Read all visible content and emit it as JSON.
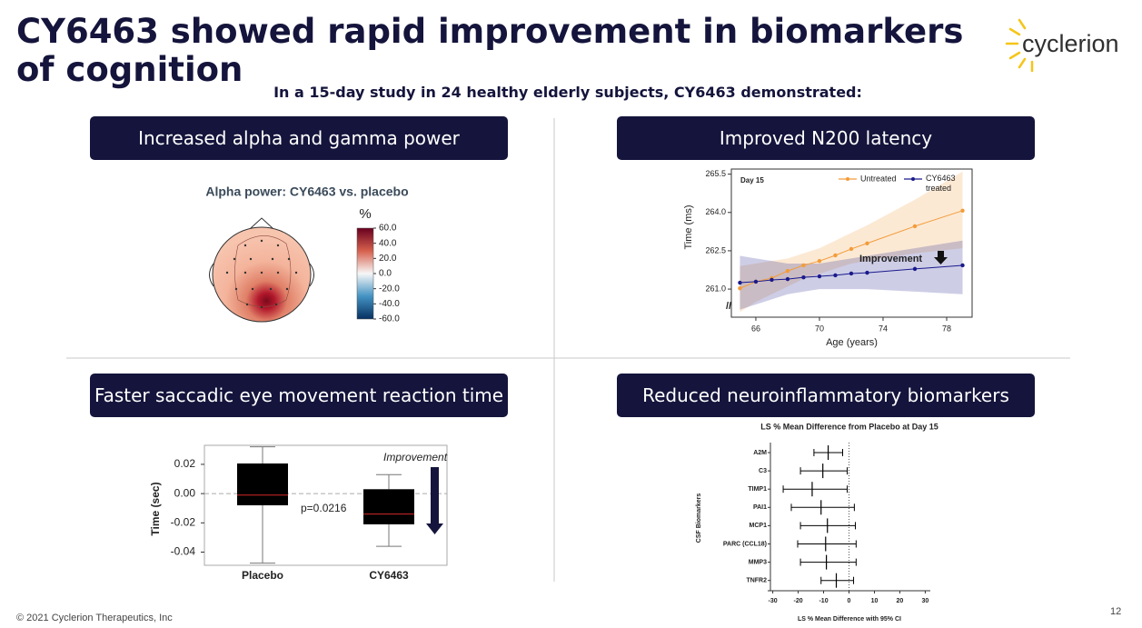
{
  "title": "CY6463 showed rapid improvement in biomarkers of cognition",
  "logo": "cyclerion",
  "subtitle": "In a 15-day study in 24 healthy elderly subjects, CY6463 demonstrated:",
  "panels": [
    "Increased alpha and gamma power",
    "Improved N200 latency",
    "Faster saccadic eye movement reaction time",
    "Reduced neuroinflammatory biomarkers"
  ],
  "footer": "© 2021 Cyclerion Therapeutics, Inc",
  "page_number": 12,
  "chart_data": [
    {
      "type": "topomap",
      "title": "Alpha power: CY6463 vs. placebo",
      "colorbar_label": "%",
      "clim": [
        -60,
        60
      ],
      "colormap": [
        "#053061",
        "#4393c3",
        "#f7f7f7",
        "#d6604d",
        "#67001f"
      ],
      "cticks": [
        {
          "value": 60,
          "label": "60.0"
        },
        {
          "value": 40,
          "label": "40.0"
        },
        {
          "value": 20,
          "label": "20.0"
        },
        {
          "value": 0,
          "label": "0.0"
        },
        {
          "value": -20,
          "label": "-20.0"
        },
        {
          "value": -40,
          "label": "-40.0"
        },
        {
          "value": -60,
          "label": "-60.0"
        }
      ]
    },
    {
      "type": "line",
      "xlabel": "Age (years)",
      "ylabel": "Time (ms)",
      "x": [
        65,
        66,
        67,
        68,
        69,
        70,
        71,
        72,
        73,
        76,
        79
      ],
      "series": [
        {
          "name": "Untreated",
          "color": "#f39c3a",
          "values": [
            261.03,
            261.29,
            261.43,
            261.71,
            261.93,
            262.1,
            262.32,
            262.57,
            262.79,
            263.46,
            264.07
          ],
          "band_lower": [
            260.1,
            260.5,
            260.8,
            261.1,
            261.4,
            261.6,
            261.8,
            262.0,
            262.1,
            262.4,
            262.6
          ],
          "band_upper": [
            261.9,
            262.0,
            262.1,
            262.2,
            262.4,
            262.6,
            262.9,
            263.2,
            263.5,
            264.5,
            265.6
          ]
        },
        {
          "name": "CY6463 treated",
          "color": "#1a1a8c",
          "values": [
            261.25,
            261.29,
            261.36,
            261.39,
            261.46,
            261.5,
            261.54,
            261.61,
            261.64,
            261.79,
            261.93
          ],
          "band_lower": [
            260.2,
            260.4,
            260.6,
            260.8,
            260.9,
            261.0,
            261.0,
            261.0,
            261.0,
            260.9,
            260.8
          ],
          "band_upper": [
            262.3,
            262.2,
            262.1,
            262.0,
            262.0,
            262.0,
            262.1,
            262.2,
            262.3,
            262.6,
            262.9
          ]
        }
      ],
      "xlim": [
        64.46,
        79.6
      ],
      "ylim": [
        259.9,
        265.7
      ],
      "xticks": [
        66,
        70,
        74,
        78
      ],
      "yticks": [
        {
          "value": 261,
          "label": "261.0"
        },
        262.5,
        {
          "value": 264,
          "label": "264.0"
        },
        265.5
      ],
      "legend": "upper right",
      "annotations": [
        "Day 15",
        "Improvement"
      ]
    },
    {
      "type": "box",
      "ylabel": "Time (sec)",
      "categories": [
        "Placebo",
        "CY6463"
      ],
      "color": "#000000",
      "median_color": "#d62728",
      "whisker_low": [
        -0.0475,
        -0.036
      ],
      "q1": [
        -0.008,
        -0.021
      ],
      "median": [
        -0.001,
        -0.014
      ],
      "q3": [
        0.0206,
        0.003
      ],
      "whisker_high": [
        0.032,
        0.013
      ],
      "ylim": [
        -0.049,
        0.033
      ],
      "yticks": [
        0.02,
        {
          "value": 0,
          "label": "0.00"
        },
        -0.02,
        -0.04
      ],
      "annotations": [
        "p=0.0216",
        "Improvement"
      ]
    },
    {
      "type": "forest",
      "title": "LS % Mean Difference from Placebo at Day 15",
      "xlabel": "LS % Mean Difference with 95% CI",
      "ylabel": "CSF Biomarkers",
      "categories": [
        "A2M",
        "C3",
        "TIMP1",
        "PAI1",
        "MCP1",
        "PARC (CCL18)",
        "MMP3",
        "TNFR2"
      ],
      "values": [
        -8.2,
        -10.3,
        -14.5,
        -11,
        -8.5,
        -9.2,
        -8.9,
        -5
      ],
      "lower": [
        -13.8,
        -19.1,
        -25.9,
        -22.7,
        -19.1,
        -20.2,
        -19.1,
        -11
      ],
      "upper": [
        -2.5,
        -0.7,
        -0.7,
        2.1,
        2.5,
        2.8,
        2.8,
        1.8
      ],
      "xlim": [
        -32,
        32
      ],
      "xticks": [
        -30,
        -20,
        -10,
        0,
        10,
        20,
        30
      ]
    }
  ]
}
